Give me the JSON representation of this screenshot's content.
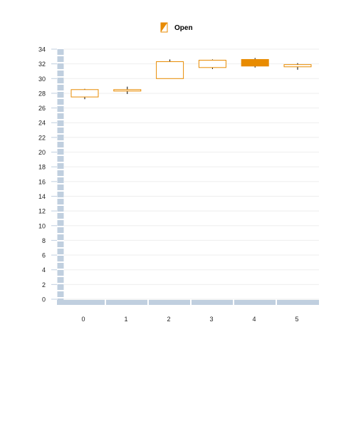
{
  "legend": {
    "label": "Open"
  },
  "colors": {
    "candle": "#e88b00",
    "wick": "#000000",
    "axis": "#c0cfdf",
    "grid": "#eeeeee",
    "tick_text": "#222222"
  },
  "chart_data": {
    "type": "candlestick",
    "title": "",
    "xlabel": "",
    "ylabel": "",
    "categories": [
      "0",
      "1",
      "2",
      "3",
      "4",
      "5"
    ],
    "ylim": [
      0,
      34
    ],
    "yticks": [
      0,
      2,
      4,
      6,
      8,
      10,
      12,
      14,
      16,
      18,
      20,
      22,
      24,
      26,
      28,
      30,
      32,
      34
    ],
    "grid": true,
    "legend_position": "top-center",
    "series": [
      {
        "name": "Open",
        "points": [
          {
            "x": "0",
            "open": 27.5,
            "close": 28.5,
            "high": 28.6,
            "low": 27.2,
            "filled": false
          },
          {
            "x": "1",
            "open": 28.3,
            "close": 28.5,
            "high": 28.9,
            "low": 27.9,
            "filled": false
          },
          {
            "x": "2",
            "open": 30.0,
            "close": 32.3,
            "high": 32.6,
            "low": 30.0,
            "filled": false
          },
          {
            "x": "3",
            "open": 31.5,
            "close": 32.5,
            "high": 32.6,
            "low": 31.3,
            "filled": false
          },
          {
            "x": "4",
            "open": 32.6,
            "close": 31.7,
            "high": 32.8,
            "low": 31.5,
            "filled": true
          },
          {
            "x": "5",
            "open": 31.6,
            "close": 31.9,
            "high": 32.1,
            "low": 31.2,
            "filled": false
          }
        ]
      }
    ]
  }
}
